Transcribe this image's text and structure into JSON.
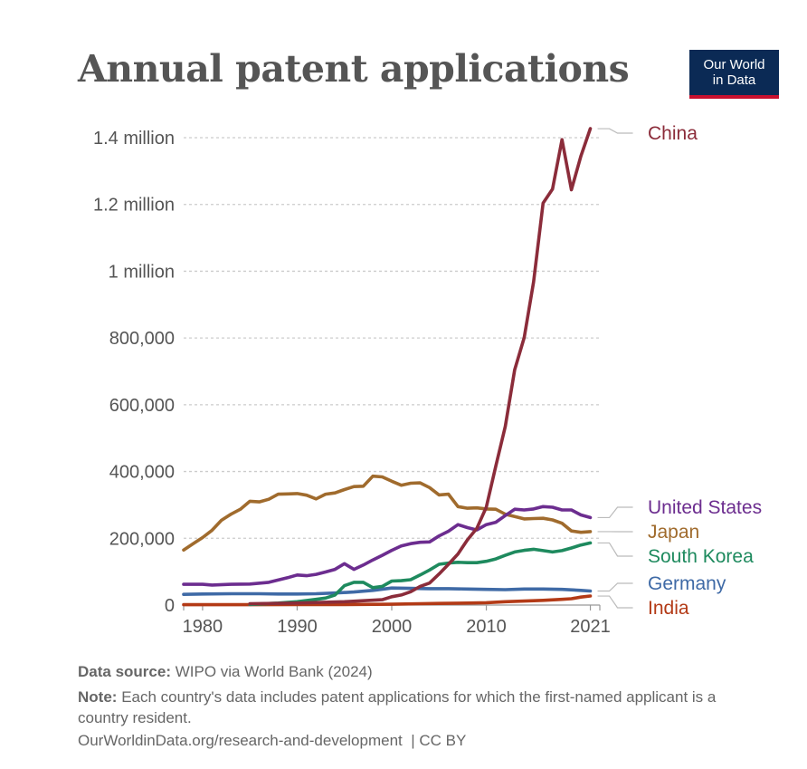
{
  "title": "Annual patent applications",
  "logo": {
    "line1": "Our World",
    "line2": "in Data"
  },
  "footer": {
    "source_label": "Data source:",
    "source_text": "WIPO via World Bank (2024)",
    "note_label": "Note:",
    "note_text": "Each country's data includes patent applications for which the first-named applicant is a country resident.",
    "url": "OurWorldinData.org/research-and-development",
    "license": "| CC BY"
  },
  "chart_data": {
    "type": "line",
    "title": "Annual patent applications",
    "xlabel": "",
    "ylabel": "",
    "xlim": [
      1978,
      2022
    ],
    "ylim": [
      0,
      1400000
    ],
    "x_ticks": [
      1980,
      1990,
      2000,
      2010,
      2021
    ],
    "y_ticks": [
      0,
      200000,
      400000,
      600000,
      800000,
      1000000,
      1200000,
      1400000
    ],
    "y_tick_labels": [
      "0",
      "200,000",
      "400,000",
      "600,000",
      "800,000",
      "1 million",
      "1.2 million",
      "1.4 million"
    ],
    "grid": true,
    "legend": "inline-right",
    "series": [
      {
        "name": "China",
        "color": "#8b2c3a",
        "points": [
          [
            1985,
            4000
          ],
          [
            1990,
            6000
          ],
          [
            1995,
            10000
          ],
          [
            1999,
            16000
          ],
          [
            2000,
            25000
          ],
          [
            2001,
            30000
          ],
          [
            2002,
            40000
          ],
          [
            2003,
            56000
          ],
          [
            2004,
            66000
          ],
          [
            2005,
            93000
          ],
          [
            2006,
            122000
          ],
          [
            2007,
            153000
          ],
          [
            2008,
            195000
          ],
          [
            2009,
            230000
          ],
          [
            2010,
            293000
          ],
          [
            2011,
            416000
          ],
          [
            2012,
            535000
          ],
          [
            2013,
            705000
          ],
          [
            2014,
            801000
          ],
          [
            2015,
            968000
          ],
          [
            2016,
            1204000
          ],
          [
            2017,
            1246000
          ],
          [
            2018,
            1394000
          ],
          [
            2019,
            1244000
          ],
          [
            2020,
            1345000
          ],
          [
            2021,
            1427000
          ]
        ]
      },
      {
        "name": "United States",
        "color": "#6c2d8f",
        "points": [
          [
            1978,
            62000
          ],
          [
            1980,
            62000
          ],
          [
            1981,
            60000
          ],
          [
            1983,
            62000
          ],
          [
            1985,
            63000
          ],
          [
            1987,
            68000
          ],
          [
            1989,
            82000
          ],
          [
            1990,
            90000
          ],
          [
            1991,
            88000
          ],
          [
            1992,
            92000
          ],
          [
            1993,
            99000
          ],
          [
            1994,
            107000
          ],
          [
            1995,
            124000
          ],
          [
            1996,
            107000
          ],
          [
            1997,
            120000
          ],
          [
            1998,
            135000
          ],
          [
            1999,
            149000
          ],
          [
            2000,
            164000
          ],
          [
            2001,
            177000
          ],
          [
            2002,
            184000
          ],
          [
            2003,
            188000
          ],
          [
            2004,
            189000
          ],
          [
            2005,
            207000
          ],
          [
            2006,
            221000
          ],
          [
            2007,
            241000
          ],
          [
            2008,
            232000
          ],
          [
            2009,
            225000
          ],
          [
            2010,
            241000
          ],
          [
            2011,
            248000
          ],
          [
            2012,
            268000
          ],
          [
            2013,
            287000
          ],
          [
            2014,
            285000
          ],
          [
            2015,
            288000
          ],
          [
            2016,
            295000
          ],
          [
            2017,
            293000
          ],
          [
            2018,
            285000
          ],
          [
            2019,
            285000
          ],
          [
            2020,
            270000
          ],
          [
            2021,
            262000
          ]
        ]
      },
      {
        "name": "Japan",
        "color": "#a06b2d",
        "points": [
          [
            1978,
            165000
          ],
          [
            1979,
            184000
          ],
          [
            1980,
            202000
          ],
          [
            1981,
            224000
          ],
          [
            1982,
            254000
          ],
          [
            1983,
            272000
          ],
          [
            1984,
            287000
          ],
          [
            1985,
            311000
          ],
          [
            1986,
            309000
          ],
          [
            1987,
            317000
          ],
          [
            1988,
            332000
          ],
          [
            1989,
            333000
          ],
          [
            1990,
            334000
          ],
          [
            1991,
            329000
          ],
          [
            1992,
            318000
          ],
          [
            1993,
            332000
          ],
          [
            1994,
            336000
          ],
          [
            1995,
            346000
          ],
          [
            1996,
            355000
          ],
          [
            1997,
            356000
          ],
          [
            1998,
            386000
          ],
          [
            1999,
            384000
          ],
          [
            2000,
            371000
          ],
          [
            2001,
            359000
          ],
          [
            2002,
            365000
          ],
          [
            2003,
            366000
          ],
          [
            2004,
            352000
          ],
          [
            2005,
            330000
          ],
          [
            2006,
            332000
          ],
          [
            2007,
            295000
          ],
          [
            2008,
            290000
          ],
          [
            2009,
            291000
          ],
          [
            2010,
            288000
          ],
          [
            2011,
            287000
          ],
          [
            2012,
            272000
          ],
          [
            2013,
            265000
          ],
          [
            2014,
            258000
          ],
          [
            2015,
            259000
          ],
          [
            2016,
            260000
          ],
          [
            2017,
            255000
          ],
          [
            2018,
            245000
          ],
          [
            2019,
            222000
          ],
          [
            2020,
            218000
          ],
          [
            2021,
            220000
          ]
        ]
      },
      {
        "name": "South Korea",
        "color": "#1e8a5e",
        "points": [
          [
            1985,
            2000
          ],
          [
            1988,
            6000
          ],
          [
            1990,
            10000
          ],
          [
            1992,
            17000
          ],
          [
            1993,
            21000
          ],
          [
            1994,
            30000
          ],
          [
            1995,
            58000
          ],
          [
            1996,
            68000
          ],
          [
            1997,
            68000
          ],
          [
            1998,
            52000
          ],
          [
            1999,
            56000
          ],
          [
            2000,
            72000
          ],
          [
            2001,
            73000
          ],
          [
            2002,
            76000
          ],
          [
            2003,
            90000
          ],
          [
            2004,
            105000
          ],
          [
            2005,
            122000
          ],
          [
            2006,
            126000
          ],
          [
            2007,
            128000
          ],
          [
            2008,
            127000
          ],
          [
            2009,
            127000
          ],
          [
            2010,
            131000
          ],
          [
            2011,
            138000
          ],
          [
            2012,
            149000
          ],
          [
            2013,
            159000
          ],
          [
            2014,
            164000
          ],
          [
            2015,
            167000
          ],
          [
            2016,
            163000
          ],
          [
            2017,
            159000
          ],
          [
            2018,
            163000
          ],
          [
            2019,
            171000
          ],
          [
            2020,
            180000
          ],
          [
            2021,
            186000
          ]
        ]
      },
      {
        "name": "Germany",
        "color": "#3f6aa6",
        "points": [
          [
            1978,
            32000
          ],
          [
            1980,
            33000
          ],
          [
            1983,
            34000
          ],
          [
            1986,
            34000
          ],
          [
            1988,
            33000
          ],
          [
            1990,
            33000
          ],
          [
            1992,
            34000
          ],
          [
            1994,
            36000
          ],
          [
            1996,
            39000
          ],
          [
            1998,
            44000
          ],
          [
            2000,
            51000
          ],
          [
            2002,
            50000
          ],
          [
            2004,
            49000
          ],
          [
            2006,
            49000
          ],
          [
            2008,
            48000
          ],
          [
            2010,
            47000
          ],
          [
            2012,
            46000
          ],
          [
            2014,
            48000
          ],
          [
            2016,
            48000
          ],
          [
            2018,
            47000
          ],
          [
            2020,
            44000
          ],
          [
            2021,
            42000
          ]
        ]
      },
      {
        "name": "India",
        "color": "#b33a16",
        "points": [
          [
            1978,
            1000
          ],
          [
            1985,
            1000
          ],
          [
            1990,
            1500
          ],
          [
            1995,
            1500
          ],
          [
            2000,
            2500
          ],
          [
            2003,
            4000
          ],
          [
            2005,
            5000
          ],
          [
            2008,
            6000
          ],
          [
            2010,
            7000
          ],
          [
            2012,
            10000
          ],
          [
            2014,
            12000
          ],
          [
            2016,
            14000
          ],
          [
            2018,
            17000
          ],
          [
            2019,
            19000
          ],
          [
            2020,
            24000
          ],
          [
            2021,
            27000
          ]
        ]
      }
    ]
  }
}
